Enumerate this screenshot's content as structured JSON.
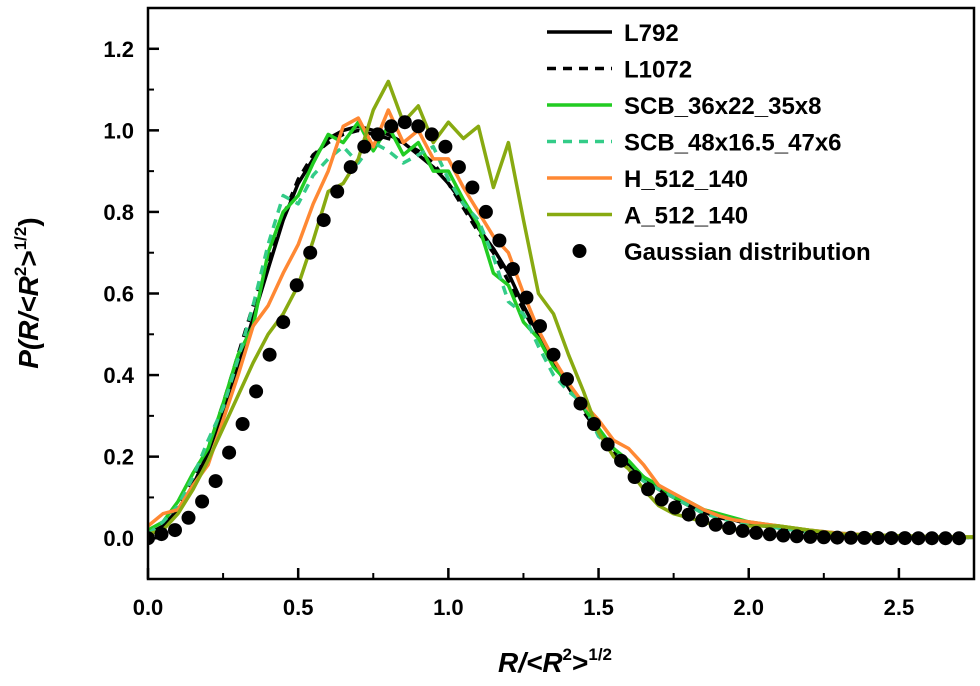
{
  "chart_data": {
    "type": "line",
    "title": "",
    "xlabel": {
      "main": "R/<R",
      "sup1": "2",
      "mid": ">",
      "sup2": "1/2"
    },
    "ylabel": {
      "main": "P(R/<R",
      "sup1": "2",
      "mid": ">",
      "sup2": "1/2",
      "close": ")"
    },
    "xlim": [
      0.0,
      2.75
    ],
    "ylim": [
      -0.1,
      1.3
    ],
    "xticks": [
      0.0,
      0.5,
      1.0,
      1.5,
      2.0,
      2.5
    ],
    "yticks": [
      0.0,
      0.2,
      0.4,
      0.6,
      0.8,
      1.0,
      1.2
    ],
    "xtick_labels": [
      "0.0",
      "0.5",
      "1.0",
      "1.5",
      "2.0",
      "2.5"
    ],
    "ytick_labels": [
      "0.0",
      "0.2",
      "0.4",
      "0.6",
      "0.8",
      "1.0",
      "1.2"
    ],
    "grid": false,
    "legend_position": "top-right",
    "series": [
      {
        "name": "L792",
        "color": "#000000",
        "dash": "solid",
        "marker": "none",
        "width": 3.5,
        "x": [
          0.0,
          0.05,
          0.1,
          0.15,
          0.2,
          0.25,
          0.3,
          0.35,
          0.4,
          0.45,
          0.5,
          0.55,
          0.6,
          0.65,
          0.7,
          0.75,
          0.8,
          0.85,
          0.9,
          0.95,
          1.0,
          1.05,
          1.1,
          1.15,
          1.2,
          1.25,
          1.3,
          1.35,
          1.4,
          1.45,
          1.5,
          1.55,
          1.6,
          1.65,
          1.7,
          1.75,
          1.8,
          1.85,
          1.9,
          1.95,
          2.0,
          2.1,
          2.2,
          2.3,
          2.4,
          2.5,
          2.6,
          2.7,
          2.75
        ],
        "y": [
          0.01,
          0.03,
          0.07,
          0.13,
          0.21,
          0.31,
          0.42,
          0.54,
          0.66,
          0.78,
          0.87,
          0.93,
          0.98,
          1.0,
          1.01,
          1.0,
          0.99,
          0.97,
          0.94,
          0.91,
          0.87,
          0.82,
          0.76,
          0.71,
          0.65,
          0.57,
          0.5,
          0.43,
          0.37,
          0.32,
          0.26,
          0.22,
          0.18,
          0.15,
          0.12,
          0.1,
          0.08,
          0.065,
          0.05,
          0.045,
          0.035,
          0.025,
          0.015,
          0.01,
          0.007,
          0.004,
          0.003,
          0.002,
          0.002
        ]
      },
      {
        "name": "L1072",
        "color": "#000000",
        "dash": "dashed",
        "marker": "none",
        "width": 3.5,
        "x": [
          0.0,
          0.05,
          0.1,
          0.15,
          0.2,
          0.25,
          0.3,
          0.35,
          0.4,
          0.45,
          0.5,
          0.55,
          0.6,
          0.65,
          0.7,
          0.75,
          0.8,
          0.85,
          0.9,
          0.95,
          1.0,
          1.05,
          1.1,
          1.15,
          1.2,
          1.25,
          1.3,
          1.35,
          1.4,
          1.45,
          1.5,
          1.55,
          1.6,
          1.65,
          1.7,
          1.75,
          1.8,
          1.85,
          1.9,
          1.95,
          2.0,
          2.1,
          2.2,
          2.3,
          2.4,
          2.5,
          2.6,
          2.7,
          2.75
        ],
        "y": [
          0.01,
          0.03,
          0.08,
          0.14,
          0.22,
          0.33,
          0.45,
          0.57,
          0.68,
          0.79,
          0.88,
          0.94,
          0.97,
          0.99,
          1.0,
          0.99,
          0.98,
          0.97,
          0.95,
          0.92,
          0.87,
          0.81,
          0.75,
          0.7,
          0.63,
          0.56,
          0.49,
          0.43,
          0.37,
          0.31,
          0.26,
          0.21,
          0.18,
          0.15,
          0.12,
          0.1,
          0.08,
          0.065,
          0.05,
          0.045,
          0.035,
          0.025,
          0.015,
          0.01,
          0.007,
          0.004,
          0.003,
          0.002,
          0.002
        ]
      },
      {
        "name": "SCB_36x22_35x8",
        "color": "#22cc22",
        "dash": "solid",
        "marker": "none",
        "width": 3.5,
        "x": [
          0.0,
          0.05,
          0.1,
          0.15,
          0.2,
          0.25,
          0.3,
          0.35,
          0.4,
          0.45,
          0.5,
          0.55,
          0.6,
          0.65,
          0.7,
          0.75,
          0.8,
          0.85,
          0.9,
          0.95,
          1.0,
          1.05,
          1.1,
          1.15,
          1.2,
          1.25,
          1.3,
          1.35,
          1.4,
          1.45,
          1.5,
          1.55,
          1.6,
          1.65,
          1.7,
          1.75,
          1.8,
          1.85,
          1.9,
          1.95,
          2.0,
          2.1,
          2.2,
          2.3,
          2.4,
          2.5,
          2.6,
          2.7,
          2.75
        ],
        "y": [
          0.02,
          0.04,
          0.09,
          0.16,
          0.22,
          0.33,
          0.45,
          0.52,
          0.7,
          0.8,
          0.84,
          0.92,
          0.99,
          0.97,
          1.02,
          0.95,
          1.01,
          0.94,
          0.97,
          0.9,
          0.9,
          0.83,
          0.77,
          0.65,
          0.62,
          0.53,
          0.49,
          0.42,
          0.38,
          0.32,
          0.27,
          0.22,
          0.19,
          0.15,
          0.13,
          0.1,
          0.09,
          0.07,
          0.06,
          0.05,
          0.04,
          0.03,
          0.02,
          0.012,
          0.008,
          0.006,
          0.004,
          0.003,
          0.003
        ]
      },
      {
        "name": "SCB_48x16.5_47x6",
        "color": "#33cc88",
        "dash": "dashed",
        "marker": "none",
        "width": 3.5,
        "x": [
          0.0,
          0.05,
          0.1,
          0.15,
          0.2,
          0.25,
          0.3,
          0.35,
          0.4,
          0.45,
          0.5,
          0.55,
          0.6,
          0.65,
          0.7,
          0.75,
          0.8,
          0.85,
          0.9,
          0.95,
          1.0,
          1.05,
          1.1,
          1.15,
          1.2,
          1.25,
          1.3,
          1.35,
          1.4,
          1.45,
          1.5,
          1.55,
          1.6,
          1.65,
          1.7,
          1.75,
          1.8,
          1.85,
          1.9,
          1.95,
          2.0,
          2.1,
          2.2,
          2.3,
          2.4,
          2.5,
          2.6,
          2.7,
          2.75
        ],
        "y": [
          0.01,
          0.04,
          0.08,
          0.15,
          0.24,
          0.32,
          0.44,
          0.57,
          0.72,
          0.84,
          0.82,
          0.89,
          0.93,
          0.96,
          0.92,
          0.97,
          0.95,
          0.92,
          0.94,
          0.96,
          0.88,
          0.82,
          0.78,
          0.69,
          0.58,
          0.55,
          0.47,
          0.4,
          0.36,
          0.33,
          0.25,
          0.22,
          0.17,
          0.14,
          0.12,
          0.1,
          0.08,
          0.06,
          0.05,
          0.04,
          0.035,
          0.025,
          0.015,
          0.01,
          0.007,
          0.005,
          0.003,
          0.002,
          0.002
        ]
      },
      {
        "name": "H_512_140",
        "color": "#ff8833",
        "dash": "solid",
        "marker": "none",
        "width": 3.5,
        "x": [
          0.0,
          0.05,
          0.1,
          0.15,
          0.2,
          0.25,
          0.3,
          0.35,
          0.4,
          0.45,
          0.5,
          0.55,
          0.6,
          0.65,
          0.7,
          0.75,
          0.8,
          0.85,
          0.9,
          0.95,
          1.0,
          1.05,
          1.1,
          1.15,
          1.2,
          1.25,
          1.3,
          1.35,
          1.4,
          1.45,
          1.5,
          1.55,
          1.6,
          1.65,
          1.7,
          1.75,
          1.8,
          1.85,
          1.9,
          1.95,
          2.0,
          2.1,
          2.2,
          2.3,
          2.4,
          2.5,
          2.6,
          2.7,
          2.75
        ],
        "y": [
          0.03,
          0.06,
          0.07,
          0.13,
          0.18,
          0.29,
          0.4,
          0.52,
          0.57,
          0.65,
          0.72,
          0.82,
          0.9,
          1.01,
          1.03,
          0.96,
          1.05,
          0.97,
          1.0,
          0.93,
          0.93,
          0.86,
          0.8,
          0.74,
          0.7,
          0.6,
          0.51,
          0.44,
          0.38,
          0.33,
          0.29,
          0.24,
          0.22,
          0.18,
          0.13,
          0.11,
          0.09,
          0.07,
          0.055,
          0.045,
          0.04,
          0.03,
          0.02,
          0.012,
          0.008,
          0.006,
          0.004,
          0.003,
          0.003
        ]
      },
      {
        "name": "A_512_140",
        "color": "#88aa11",
        "dash": "solid",
        "marker": "none",
        "width": 3.5,
        "x": [
          0.0,
          0.05,
          0.1,
          0.15,
          0.2,
          0.25,
          0.3,
          0.35,
          0.4,
          0.45,
          0.5,
          0.55,
          0.6,
          0.65,
          0.7,
          0.75,
          0.8,
          0.85,
          0.9,
          0.95,
          1.0,
          1.05,
          1.1,
          1.15,
          1.2,
          1.25,
          1.3,
          1.35,
          1.4,
          1.45,
          1.5,
          1.55,
          1.6,
          1.65,
          1.7,
          1.75,
          1.8,
          1.85,
          1.9,
          1.95,
          2.0,
          2.1,
          2.2,
          2.3,
          2.4,
          2.5,
          2.6,
          2.7,
          2.75
        ],
        "y": [
          0.01,
          0.02,
          0.06,
          0.12,
          0.19,
          0.27,
          0.35,
          0.43,
          0.5,
          0.55,
          0.62,
          0.73,
          0.85,
          0.87,
          0.93,
          1.05,
          1.12,
          1.02,
          1.06,
          0.97,
          1.02,
          0.98,
          1.01,
          0.86,
          0.97,
          0.78,
          0.6,
          0.55,
          0.45,
          0.36,
          0.26,
          0.2,
          0.17,
          0.12,
          0.08,
          0.06,
          0.05,
          0.04,
          0.03,
          0.02,
          0.03,
          0.03,
          0.02,
          0.01,
          0.008,
          0.006,
          0.004,
          0.003,
          0.003
        ]
      },
      {
        "name": "Gaussian distribution",
        "color": "#000000",
        "dash": "none",
        "marker": "circle",
        "marker_color": "#000000",
        "x": [
          0.0,
          0.045,
          0.09,
          0.135,
          0.18,
          0.225,
          0.27,
          0.315,
          0.36,
          0.405,
          0.45,
          0.495,
          0.54,
          0.585,
          0.63,
          0.675,
          0.72,
          0.765,
          0.81,
          0.855,
          0.9,
          0.945,
          0.99,
          1.035,
          1.08,
          1.125,
          1.17,
          1.215,
          1.26,
          1.305,
          1.35,
          1.395,
          1.44,
          1.485,
          1.53,
          1.575,
          1.62,
          1.665,
          1.71,
          1.755,
          1.8,
          1.845,
          1.89,
          1.935,
          1.98,
          2.025,
          2.07,
          2.115,
          2.16,
          2.205,
          2.25,
          2.295,
          2.34,
          2.385,
          2.43,
          2.475,
          2.52,
          2.565,
          2.61,
          2.655,
          2.7
        ],
        "y": [
          0.0,
          0.01,
          0.02,
          0.05,
          0.09,
          0.14,
          0.21,
          0.28,
          0.36,
          0.45,
          0.53,
          0.62,
          0.7,
          0.78,
          0.85,
          0.91,
          0.96,
          0.99,
          1.01,
          1.02,
          1.01,
          0.99,
          0.96,
          0.91,
          0.86,
          0.8,
          0.73,
          0.66,
          0.59,
          0.52,
          0.45,
          0.39,
          0.33,
          0.28,
          0.23,
          0.19,
          0.15,
          0.12,
          0.095,
          0.075,
          0.058,
          0.044,
          0.033,
          0.025,
          0.018,
          0.013,
          0.0095,
          0.0067,
          0.0047,
          0.0033,
          0.0022,
          0.0015,
          0.001,
          0.0007,
          0.0005,
          0.0003,
          0.0002,
          0.0001,
          0.0001,
          0.0,
          0.0
        ]
      }
    ]
  }
}
